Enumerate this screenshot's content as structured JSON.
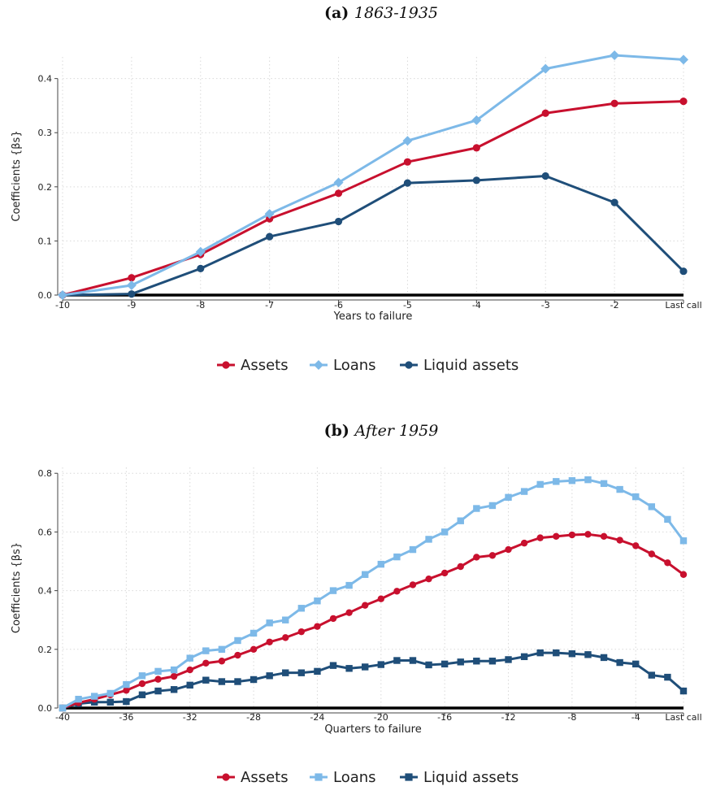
{
  "colors": {
    "assets": "#c8102e",
    "loans": "#7db9e8",
    "liquid_assets": "#1f4e79",
    "zero_line": "#000000"
  },
  "chart_data": [
    {
      "type": "line",
      "panel_label": "(a)",
      "title": "1863-1935",
      "xlabel": "Years to failure",
      "ylabel": "Coefficients {βs}",
      "x": [
        -10,
        -9,
        -8,
        -7,
        -6,
        -5,
        -4,
        -3,
        -2,
        -1
      ],
      "x_tick_labels": [
        "-10",
        "-9",
        "-8",
        "-7",
        "-6",
        "-5",
        "-4",
        "-3",
        "-2",
        "Last call"
      ],
      "ylim": [
        0,
        0.44
      ],
      "y_ticks": [
        0.0,
        0.1,
        0.2,
        0.3,
        0.4
      ],
      "y_tick_labels": [
        "0.0",
        "0.1",
        "0.2",
        "0.3",
        "0.4"
      ],
      "grid": true,
      "legend_position": "bottom",
      "series": [
        {
          "name": "Assets",
          "key": "assets",
          "marker": "circle",
          "values": [
            0.0,
            0.032,
            0.075,
            0.141,
            0.188,
            0.246,
            0.272,
            0.336,
            0.354,
            0.358
          ]
        },
        {
          "name": "Loans",
          "key": "loans",
          "marker": "diamond",
          "values": [
            0.0,
            0.018,
            0.08,
            0.15,
            0.208,
            0.285,
            0.323,
            0.418,
            0.443,
            0.435
          ]
        },
        {
          "name": "Liquid assets",
          "key": "liquid_assets",
          "marker": "circle",
          "values": [
            0.0,
            0.002,
            0.049,
            0.108,
            0.136,
            0.207,
            0.212,
            0.22,
            0.171,
            0.044
          ]
        }
      ]
    },
    {
      "type": "line",
      "panel_label": "(b)",
      "title": "After 1959",
      "xlabel": "Quarters to failure",
      "ylabel": "Coefficients {βs}",
      "x": [
        -40,
        -39,
        -38,
        -37,
        -36,
        -35,
        -34,
        -33,
        -32,
        -31,
        -30,
        -29,
        -28,
        -27,
        -26,
        -25,
        -24,
        -23,
        -22,
        -21,
        -20,
        -19,
        -18,
        -17,
        -16,
        -15,
        -14,
        -13,
        -12,
        -11,
        -10,
        -9,
        -8,
        -7,
        -6,
        -5,
        -4,
        -3,
        -2,
        -1
      ],
      "x_ticks": [
        -40,
        -36,
        -32,
        -28,
        -24,
        -20,
        -16,
        -12,
        -8,
        -4,
        -1
      ],
      "x_tick_labels": [
        "-40",
        "-36",
        "-32",
        "-28",
        "-24",
        "-20",
        "-16",
        "-12",
        "-8",
        "-4",
        "Last call"
      ],
      "ylim": [
        0,
        0.82
      ],
      "y_ticks": [
        0.0,
        0.2,
        0.4,
        0.6,
        0.8
      ],
      "y_tick_labels": [
        "0.0",
        "0.2",
        "0.4",
        "0.6",
        "0.8"
      ],
      "grid": true,
      "legend_position": "bottom",
      "series": [
        {
          "name": "Assets",
          "key": "assets",
          "marker": "circle",
          "values": [
            0.0,
            0.018,
            0.03,
            0.045,
            0.06,
            0.083,
            0.098,
            0.108,
            0.13,
            0.153,
            0.16,
            0.18,
            0.2,
            0.225,
            0.24,
            0.26,
            0.278,
            0.305,
            0.325,
            0.35,
            0.372,
            0.398,
            0.42,
            0.44,
            0.46,
            0.482,
            0.514,
            0.52,
            0.54,
            0.562,
            0.58,
            0.585,
            0.59,
            0.592,
            0.585,
            0.572,
            0.553,
            0.525,
            0.495,
            0.455
          ]
        },
        {
          "name": "Loans",
          "key": "loans",
          "marker": "square",
          "values": [
            0.0,
            0.03,
            0.04,
            0.05,
            0.08,
            0.11,
            0.125,
            0.13,
            0.17,
            0.195,
            0.2,
            0.23,
            0.255,
            0.29,
            0.3,
            0.34,
            0.365,
            0.4,
            0.418,
            0.455,
            0.49,
            0.515,
            0.54,
            0.575,
            0.6,
            0.638,
            0.68,
            0.69,
            0.718,
            0.738,
            0.762,
            0.772,
            0.775,
            0.778,
            0.765,
            0.745,
            0.72,
            0.686,
            0.643,
            0.57
          ]
        },
        {
          "name": "Liquid assets",
          "key": "liquid_assets",
          "marker": "square",
          "values": [
            0.0,
            0.015,
            0.02,
            0.02,
            0.022,
            0.045,
            0.058,
            0.063,
            0.078,
            0.095,
            0.09,
            0.09,
            0.097,
            0.11,
            0.12,
            0.12,
            0.125,
            0.145,
            0.135,
            0.14,
            0.148,
            0.162,
            0.162,
            0.147,
            0.15,
            0.157,
            0.16,
            0.16,
            0.165,
            0.175,
            0.188,
            0.188,
            0.185,
            0.182,
            0.172,
            0.155,
            0.15,
            0.112,
            0.105,
            0.058
          ]
        }
      ]
    }
  ]
}
